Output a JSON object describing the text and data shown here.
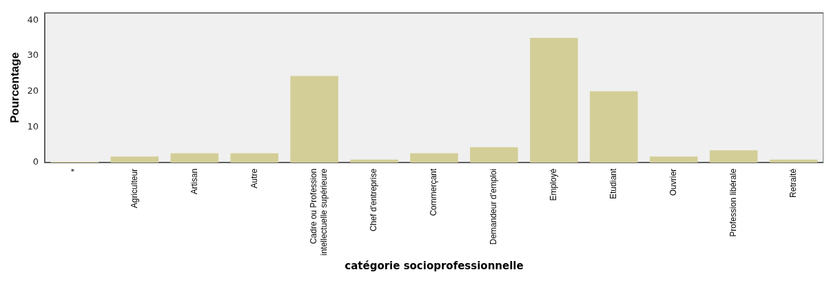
{
  "chart_data": {
    "type": "bar",
    "xlabel": "catégorie socioprofessionnelle",
    "ylabel": "Pourcentage",
    "categories": [
      "*",
      "Agriculteur",
      "Artisan",
      "Autre",
      "Cadre ou Profession intellectuelle supérieure",
      "Chef d'entreprise",
      "Commerçant",
      "Demandeur d'emploi",
      "Employé",
      "Etudiant",
      "Ouvrier",
      "Profession libérale",
      "Retraité"
    ],
    "values": [
      0.2,
      1.7,
      2.6,
      2.6,
      24.3,
      0.8,
      2.6,
      4.3,
      35.0,
      20.0,
      1.7,
      3.4,
      0.8
    ],
    "color": "#d3ce97",
    "ylim": [
      0,
      42
    ],
    "yticks": [
      0,
      10,
      20,
      30,
      40
    ],
    "grid": false,
    "legend": false
  }
}
